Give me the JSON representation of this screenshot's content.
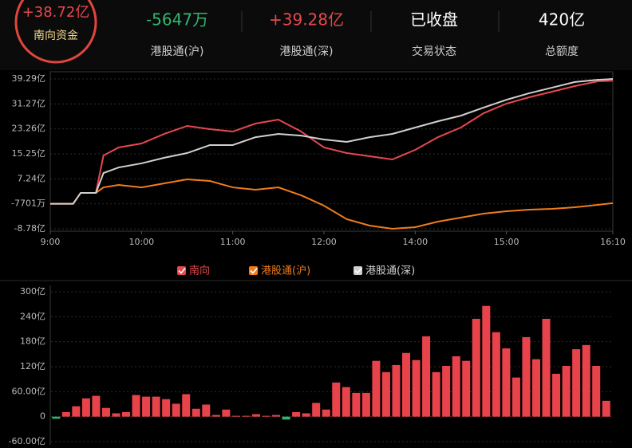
{
  "header": {
    "items": [
      {
        "value": "+38.72亿",
        "label": "南向资金"
      },
      {
        "value": "-5647万",
        "label": "港股通(沪)"
      },
      {
        "value": "+39.28亿",
        "label": "港股通(深)"
      },
      {
        "value": "已收盘",
        "label": "交易状态"
      },
      {
        "value": "420亿",
        "label": "总额度"
      }
    ]
  },
  "chart_data": [
    {
      "type": "line",
      "x": [
        "9:00",
        "9:15",
        "9:20",
        "9:30",
        "9:35",
        "9:45",
        "10:00",
        "10:15",
        "10:30",
        "10:45",
        "11:00",
        "11:15",
        "11:30",
        "11:45",
        "12:00",
        "13:15",
        "13:30",
        "13:45",
        "14:00",
        "14:15",
        "14:30",
        "14:45",
        "15:00",
        "15:15",
        "15:30",
        "15:45",
        "16:00",
        "16:10"
      ],
      "series": [
        {
          "name": "南向",
          "color": "#e8484e",
          "values": [
            -0.77,
            -0.77,
            2.73,
            2.73,
            14.74,
            17.3,
            18.58,
            21.65,
            24.21,
            23.18,
            22.41,
            24.97,
            26.25,
            22.41,
            17.3,
            15.51,
            14.49,
            13.46,
            16.53,
            20.62,
            23.69,
            28.29,
            31.36,
            33.41,
            35.2,
            36.99,
            38.52,
            38.72
          ]
        },
        {
          "name": "港股通(沪)",
          "color": "#f07c1c",
          "values": [
            -0.77,
            -0.77,
            2.73,
            2.73,
            4.5,
            5.28,
            4.5,
            5.8,
            7.07,
            6.56,
            4.5,
            3.75,
            4.5,
            1.96,
            -1.36,
            -5.71,
            -7.76,
            -8.78,
            -8.27,
            -6.48,
            -5.2,
            -3.92,
            -3.16,
            -2.64,
            -2.39,
            -1.88,
            -1.11,
            -0.5647
          ]
        },
        {
          "name": "港股通(深)",
          "color": "#d0d0d0",
          "values": [
            -0.77,
            -0.77,
            2.73,
            2.73,
            9.1,
            10.9,
            12.2,
            14.0,
            15.5,
            18.07,
            18.07,
            20.6,
            21.65,
            21.1,
            19.86,
            19.1,
            20.6,
            21.65,
            23.69,
            25.7,
            27.5,
            30.1,
            32.6,
            34.7,
            36.5,
            38.3,
            39.0,
            39.28
          ]
        }
      ],
      "xticks": [
        "9:00",
        "10:00",
        "11:00",
        "12:00",
        "14:00",
        "15:00",
        "16:10"
      ],
      "ylim": [
        -8.78,
        39.29
      ],
      "yticks": [
        {
          "value": 39.29,
          "label": "39.29亿"
        },
        {
          "value": 31.27,
          "label": "31.27亿"
        },
        {
          "value": 23.26,
          "label": "23.26亿"
        },
        {
          "value": 15.25,
          "label": "15.25亿"
        },
        {
          "value": 7.24,
          "label": "7.24亿"
        },
        {
          "value": -0.7701,
          "label": "-7701万"
        },
        {
          "value": -8.78,
          "label": "-8.78亿"
        }
      ],
      "grid": true
    },
    {
      "type": "bar",
      "categories": [
        null,
        null,
        null,
        null,
        null,
        null,
        null,
        null,
        null,
        null,
        null,
        null,
        null,
        null,
        null,
        null,
        null,
        null,
        null,
        null,
        null,
        null,
        null,
        null,
        null,
        null,
        null,
        null,
        null,
        null,
        null,
        null,
        null,
        null,
        null,
        null,
        null,
        null,
        null,
        null,
        null,
        null,
        null,
        null,
        null,
        null,
        null,
        null,
        null,
        null,
        null,
        null,
        null,
        null,
        null,
        null
      ],
      "values": [
        -5,
        11,
        25,
        44,
        50,
        21,
        8,
        11,
        52,
        48,
        48,
        42,
        31,
        54,
        19,
        29,
        4,
        17,
        2,
        2,
        6,
        2,
        4,
        -7,
        11,
        8,
        33,
        17,
        82,
        71,
        57,
        57,
        134,
        107,
        124,
        153,
        136,
        193,
        107,
        122,
        145,
        134,
        235,
        266,
        203,
        164,
        94,
        191,
        138,
        235,
        103,
        122,
        162,
        172,
        122,
        38
      ],
      "color": "#e8434b",
      "negative_color": "#2fb870",
      "ylim": [
        -60,
        300
      ],
      "yticks": [
        {
          "value": 300,
          "label": "300亿"
        },
        {
          "value": 240,
          "label": "240亿"
        },
        {
          "value": 180,
          "label": "180亿"
        },
        {
          "value": 120,
          "label": "120亿"
        },
        {
          "value": 60,
          "label": "60.00亿"
        },
        0,
        {
          "value": -60,
          "label": "-60.00亿"
        }
      ],
      "grid": true
    }
  ]
}
